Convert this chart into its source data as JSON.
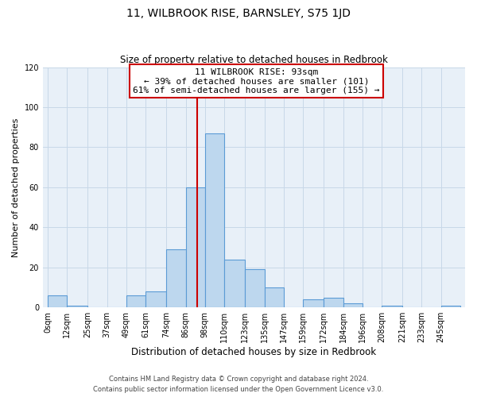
{
  "title": "11, WILBROOK RISE, BARNSLEY, S75 1JD",
  "subtitle": "Size of property relative to detached houses in Redbrook",
  "xlabel": "Distribution of detached houses by size in Redbrook",
  "ylabel": "Number of detached properties",
  "bar_labels": [
    "0sqm",
    "12sqm",
    "25sqm",
    "37sqm",
    "49sqm",
    "61sqm",
    "74sqm",
    "86sqm",
    "98sqm",
    "110sqm",
    "123sqm",
    "135sqm",
    "147sqm",
    "159sqm",
    "172sqm",
    "184sqm",
    "196sqm",
    "208sqm",
    "221sqm",
    "233sqm",
    "245sqm"
  ],
  "bar_heights": [
    6,
    1,
    0,
    0,
    6,
    8,
    29,
    60,
    87,
    24,
    19,
    10,
    0,
    4,
    5,
    2,
    0,
    1,
    0,
    0,
    1
  ],
  "bar_color": "#bdd7ee",
  "bar_edge_color": "#5b9bd5",
  "property_line_x": 93,
  "annotation_title": "11 WILBROOK RISE: 93sqm",
  "annotation_line1": "← 39% of detached houses are smaller (101)",
  "annotation_line2": "61% of semi-detached houses are larger (155) →",
  "annotation_box_color": "#ffffff",
  "annotation_box_edge": "#cc0000",
  "line_color": "#cc0000",
  "ylim": [
    0,
    120
  ],
  "footer1": "Contains HM Land Registry data © Crown copyright and database right 2024.",
  "footer2": "Contains public sector information licensed under the Open Government Licence v3.0.",
  "bin_edges": [
    0,
    12,
    25,
    37,
    49,
    61,
    74,
    86,
    98,
    110,
    123,
    135,
    147,
    159,
    172,
    184,
    196,
    208,
    221,
    233,
    245,
    257
  ],
  "title_fontsize": 10,
  "subtitle_fontsize": 8.5,
  "ylabel_fontsize": 8,
  "xlabel_fontsize": 8.5,
  "tick_fontsize": 7,
  "footer_fontsize": 6,
  "annot_fontsize": 8
}
